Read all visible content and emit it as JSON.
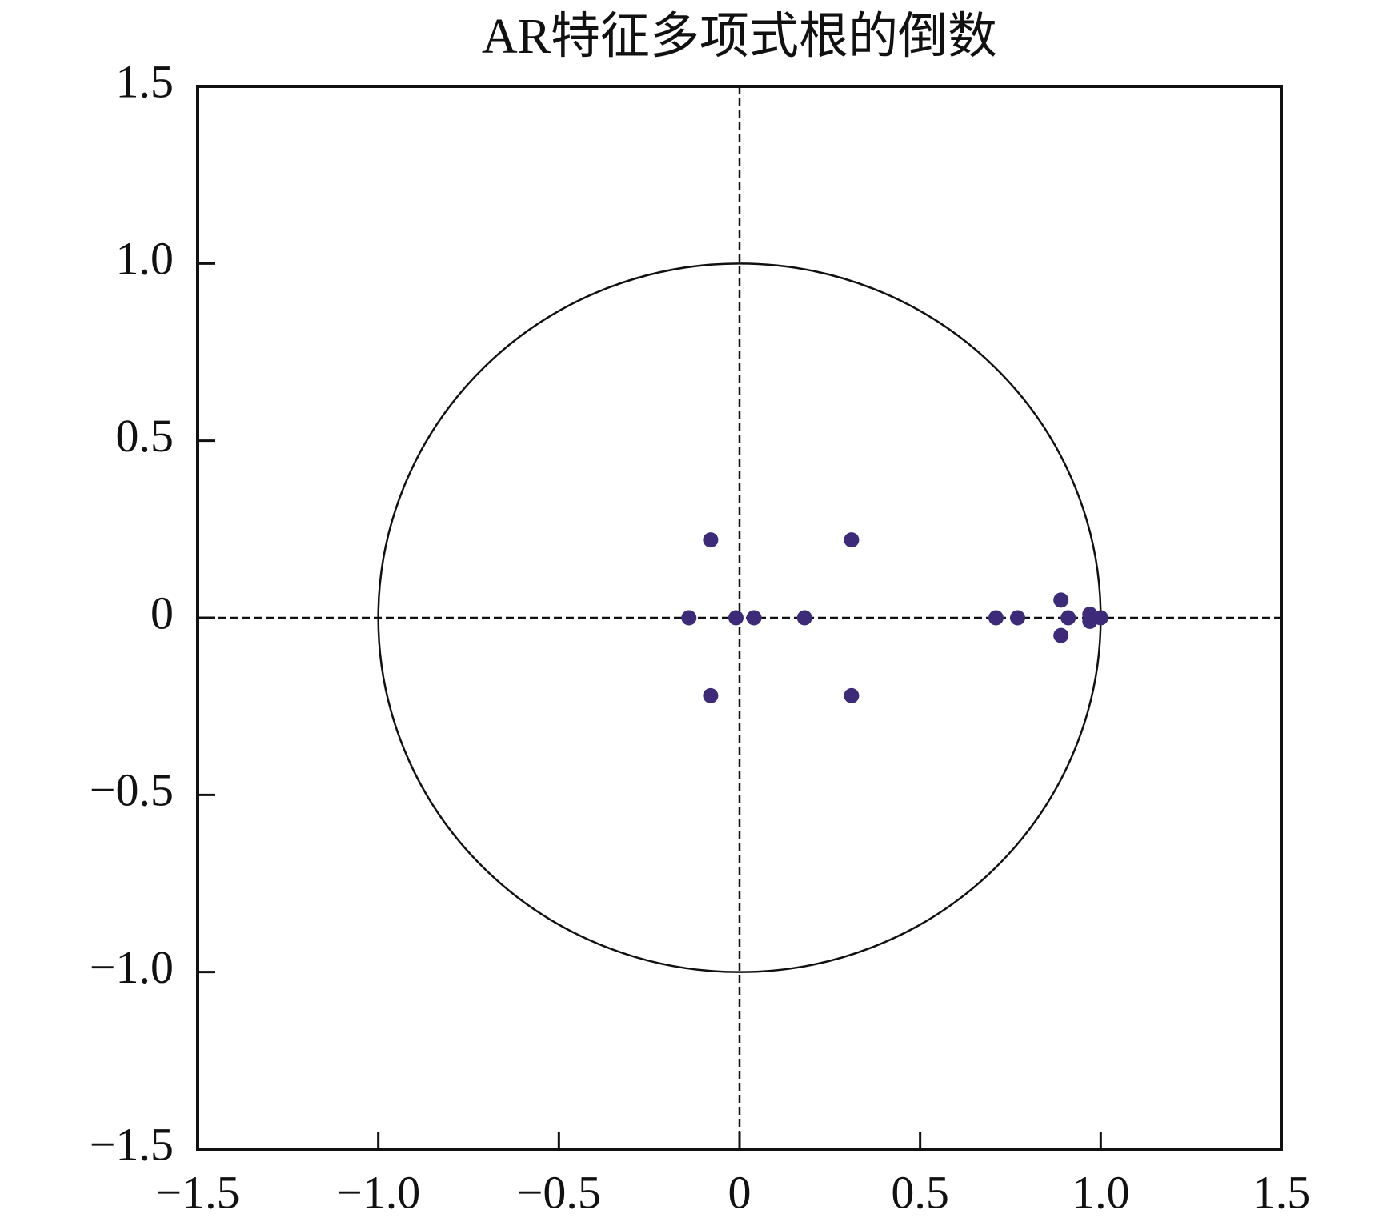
{
  "chart_data": {
    "type": "scatter",
    "title": "AR特征多项式根的倒数",
    "x": [
      -0.08,
      0.31,
      -0.08,
      0.31,
      -0.14,
      -0.01,
      0.04,
      0.18,
      0.71,
      0.77,
      0.89,
      0.89,
      0.91,
      0.97,
      0.97,
      1.0
    ],
    "series": [
      {
        "color": "#3d2b7a",
        "values": [
          0.22,
          0.22,
          -0.22,
          -0.22,
          0,
          0,
          0,
          0,
          0,
          0,
          0.05,
          -0.05,
          0,
          0.01,
          -0.01,
          0
        ]
      }
    ],
    "xlim": [
      -1.5,
      1.5
    ],
    "ylim": [
      -1.5,
      1.5
    ],
    "xticks": [
      {
        "value": -1.5,
        "label": "−1.5"
      },
      {
        "value": -1.0,
        "label": "−1.0"
      },
      {
        "value": -0.5,
        "label": "−0.5"
      },
      0,
      0.5,
      {
        "value": 1.0,
        "label": "1.0"
      },
      1.5
    ],
    "yticks": [
      {
        "value": -1.5,
        "label": "−1.5"
      },
      {
        "value": -1.0,
        "label": "−1.0"
      },
      {
        "value": -0.5,
        "label": "−0.5"
      },
      0,
      0.5,
      {
        "value": 1.0,
        "label": "1.0"
      },
      1.5
    ],
    "reference_circle_radius": 1,
    "reference_lines": {
      "x": 0,
      "y": 0
    },
    "grid": false
  }
}
